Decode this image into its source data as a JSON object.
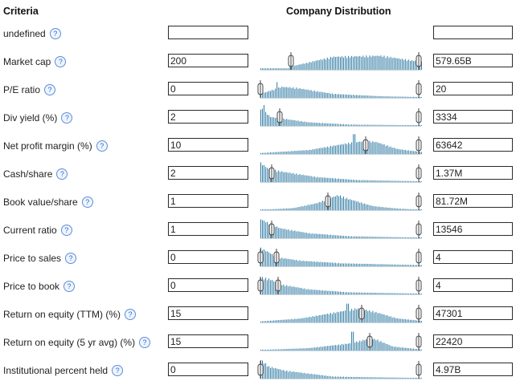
{
  "header": {
    "criteria": "Criteria",
    "distribution": "Company Distribution"
  },
  "help_icon_glyph": "?",
  "colors": {
    "bar": "#2f7aa3",
    "help_icon": "#2f6bc4"
  },
  "rows": [
    {
      "label": "undefined",
      "min": "",
      "max": "",
      "histogram": null
    },
    {
      "label": "Market cap",
      "min": "200",
      "max": "579.65B",
      "histogram": {
        "shape": [
          [
            0.18,
            0.15
          ],
          [
            0.45,
            0.65
          ],
          [
            0.75,
            0.7
          ],
          [
            0.95,
            0.45
          ]
        ],
        "spikes": [],
        "handles": [
          0.19,
          0.985
        ]
      }
    },
    {
      "label": "P/E ratio",
      "min": "0",
      "max": "20",
      "histogram": {
        "shape": [
          [
            0.0,
            0.2
          ],
          [
            0.13,
            0.55
          ],
          [
            0.22,
            0.5
          ],
          [
            0.45,
            0.2
          ],
          [
            0.75,
            0.08
          ],
          [
            1.0,
            0.04
          ]
        ],
        "spikes": [
          [
            0.1,
            0.75
          ]
        ],
        "handles": [
          0.0,
          0.985
        ]
      }
    },
    {
      "label": "Div yield (%)",
      "min": "2",
      "max": "3334",
      "histogram": {
        "shape": [
          [
            0.0,
            0.9
          ],
          [
            0.06,
            0.45
          ],
          [
            0.15,
            0.35
          ],
          [
            0.3,
            0.18
          ],
          [
            0.55,
            0.07
          ],
          [
            1.0,
            0.03
          ]
        ],
        "spikes": [
          [
            0.02,
            1.0
          ]
        ],
        "handles": [
          0.12,
          0.985
        ]
      }
    },
    {
      "label": "Net profit margin (%)",
      "min": "10",
      "max": "63642",
      "histogram": {
        "shape": [
          [
            0.0,
            0.05
          ],
          [
            0.3,
            0.2
          ],
          [
            0.55,
            0.55
          ],
          [
            0.65,
            0.65
          ],
          [
            0.72,
            0.6
          ],
          [
            0.85,
            0.25
          ],
          [
            1.0,
            0.1
          ]
        ],
        "spikes": [
          [
            0.58,
            0.95
          ]
        ],
        "handles": [
          0.655,
          0.985
        ]
      }
    },
    {
      "label": "Cash/share",
      "min": "2",
      "max": "1.37M",
      "histogram": {
        "shape": [
          [
            0.0,
            0.95
          ],
          [
            0.05,
            0.65
          ],
          [
            0.15,
            0.5
          ],
          [
            0.35,
            0.25
          ],
          [
            0.6,
            0.1
          ],
          [
            1.0,
            0.04
          ]
        ],
        "spikes": [],
        "handles": [
          0.07,
          0.985
        ]
      }
    },
    {
      "label": "Book value/share",
      "min": "1",
      "max": "81.72M",
      "histogram": {
        "shape": [
          [
            0.0,
            0.02
          ],
          [
            0.2,
            0.1
          ],
          [
            0.35,
            0.35
          ],
          [
            0.48,
            0.75
          ],
          [
            0.55,
            0.55
          ],
          [
            0.7,
            0.2
          ],
          [
            0.85,
            0.08
          ],
          [
            1.0,
            0.02
          ]
        ],
        "spikes": [],
        "handles": [
          0.42,
          0.985
        ]
      }
    },
    {
      "label": "Current ratio",
      "min": "1",
      "max": "13546",
      "histogram": {
        "shape": [
          [
            0.0,
            0.95
          ],
          [
            0.05,
            0.75
          ],
          [
            0.12,
            0.5
          ],
          [
            0.3,
            0.25
          ],
          [
            0.55,
            0.1
          ],
          [
            1.0,
            0.03
          ]
        ],
        "spikes": [],
        "handles": [
          0.07,
          0.985
        ]
      }
    },
    {
      "label": "Price to sales",
      "min": "0",
      "max": "4",
      "histogram": {
        "shape": [
          [
            0.0,
            0.9
          ],
          [
            0.05,
            0.7
          ],
          [
            0.1,
            0.45
          ],
          [
            0.25,
            0.28
          ],
          [
            0.5,
            0.15
          ],
          [
            1.0,
            0.06
          ]
        ],
        "spikes": [],
        "handles": [
          0.0,
          0.1,
          0.985
        ]
      }
    },
    {
      "label": "Price to book",
      "min": "0",
      "max": "4",
      "histogram": {
        "shape": [
          [
            0.0,
            0.85
          ],
          [
            0.06,
            0.75
          ],
          [
            0.12,
            0.5
          ],
          [
            0.3,
            0.25
          ],
          [
            0.55,
            0.1
          ],
          [
            1.0,
            0.04
          ]
        ],
        "spikes": [],
        "handles": [
          0.0,
          0.11,
          0.985
        ]
      }
    },
    {
      "label": "Return on equity (TTM) (%)",
      "min": "15",
      "max": "47301",
      "histogram": {
        "shape": [
          [
            0.0,
            0.05
          ],
          [
            0.25,
            0.2
          ],
          [
            0.5,
            0.55
          ],
          [
            0.6,
            0.7
          ],
          [
            0.7,
            0.55
          ],
          [
            0.85,
            0.2
          ],
          [
            1.0,
            0.08
          ]
        ],
        "spikes": [
          [
            0.54,
            0.9
          ]
        ],
        "handles": [
          0.63,
          0.985
        ]
      }
    },
    {
      "label": "Return on equity (5 yr avg) (%)",
      "min": "15",
      "max": "22420",
      "histogram": {
        "shape": [
          [
            0.0,
            0.03
          ],
          [
            0.3,
            0.12
          ],
          [
            0.55,
            0.35
          ],
          [
            0.68,
            0.6
          ],
          [
            0.72,
            0.55
          ],
          [
            0.82,
            0.2
          ],
          [
            1.0,
            0.05
          ]
        ],
        "spikes": [
          [
            0.57,
            0.9
          ]
        ],
        "handles": [
          0.68,
          0.985
        ]
      }
    },
    {
      "label": "Institutional percent held",
      "min": "0",
      "max": "4.97B",
      "histogram": {
        "shape": [
          [
            0.0,
            0.95
          ],
          [
            0.05,
            0.6
          ],
          [
            0.15,
            0.4
          ],
          [
            0.3,
            0.25
          ],
          [
            0.45,
            0.1
          ],
          [
            1.0,
            0.03
          ]
        ],
        "spikes": [],
        "handles": [
          0.0,
          0.985
        ]
      }
    }
  ]
}
